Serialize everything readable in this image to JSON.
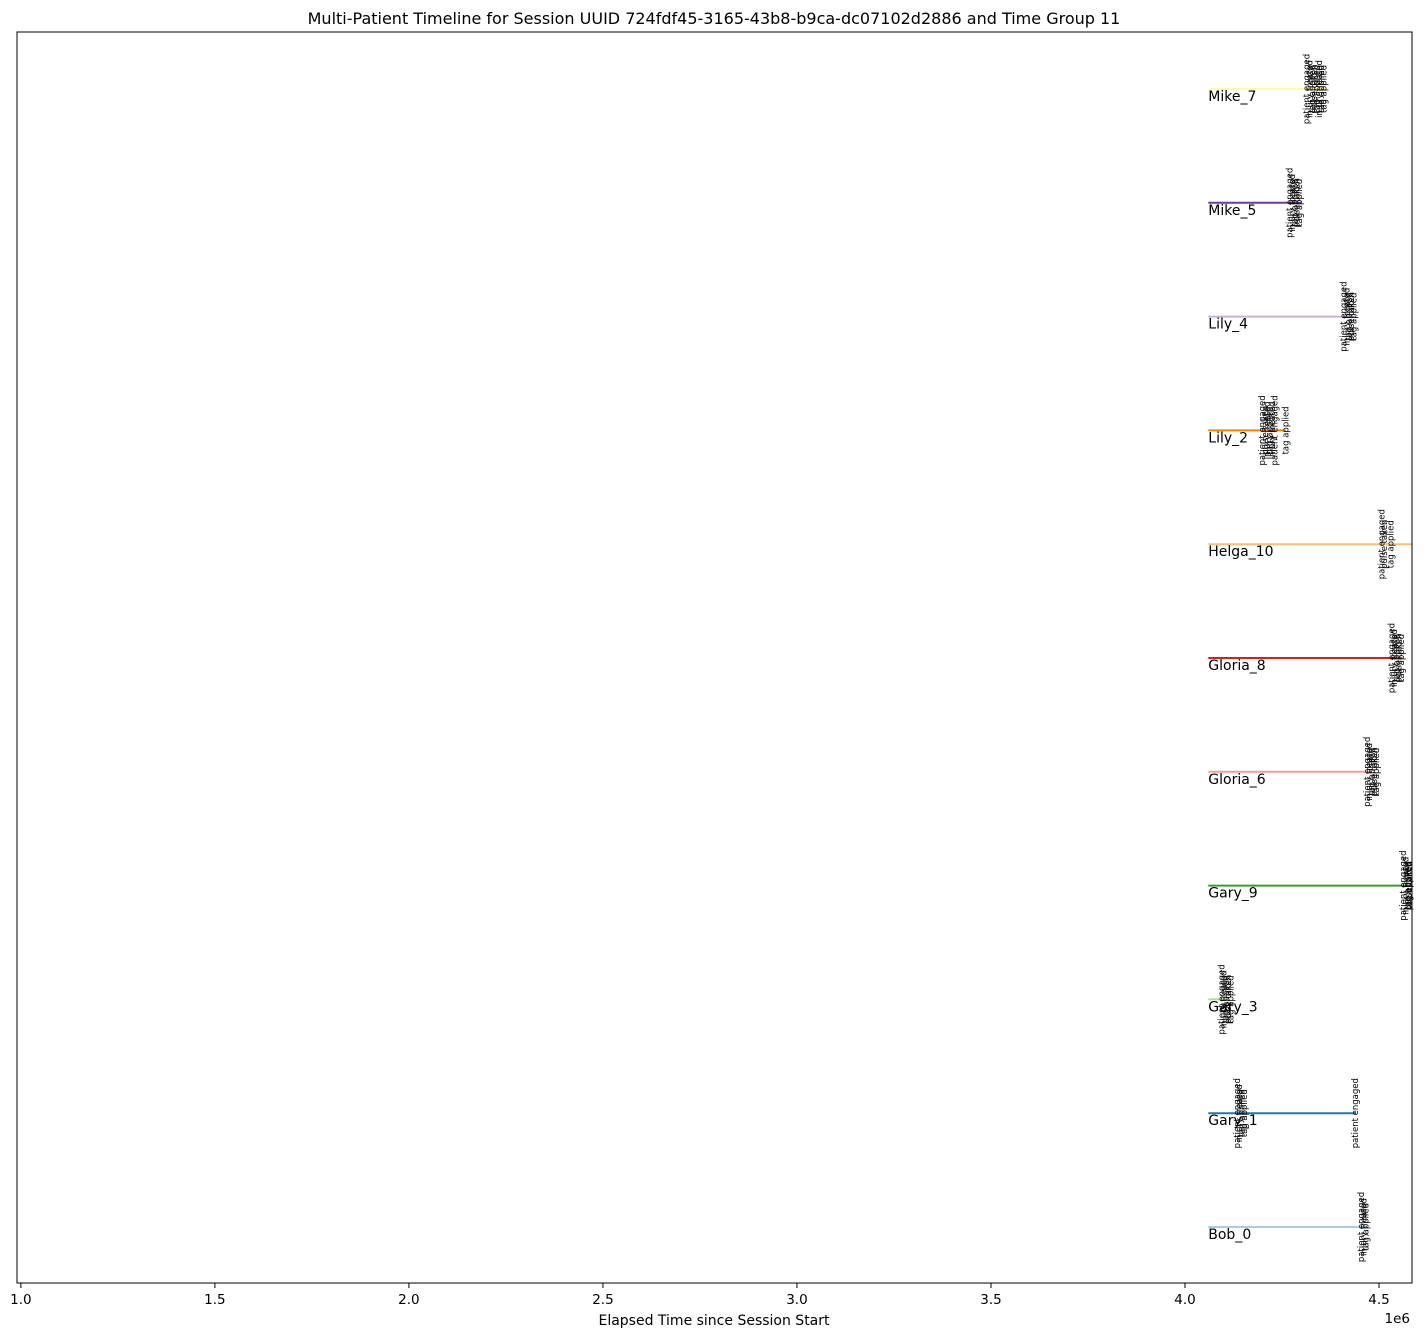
{
  "chart_data": {
    "type": "timeline",
    "title": "Multi-Patient Timeline for Session UUID 724fdf45-3165-43b8-b9ca-dc07102d2886 and Time Group 11",
    "xlabel": "Elapsed Time since Session Start",
    "ylabel": "",
    "x_offset_label": "1e6",
    "xlim": [
      0.99,
      4.585
    ],
    "x_ticks": [
      1.0,
      1.5,
      2.0,
      2.5,
      3.0,
      3.5,
      4.0,
      4.5
    ],
    "x_tick_labels": [
      "1.0",
      "1.5",
      "2.0",
      "2.5",
      "3.0",
      "3.5",
      "4.0",
      "4.5"
    ],
    "y_ticks_shown": false,
    "grid": false,
    "series": [
      {
        "name": "Mike_7",
        "color": "#ffff99",
        "start": 4.06,
        "end": 4.365,
        "events": [
          {
            "x": 4.315,
            "label": "patient engaged"
          },
          {
            "x": 4.322,
            "label": "injury treated"
          },
          {
            "x": 4.328,
            "label": "tag applied"
          },
          {
            "x": 4.334,
            "label": "pulse taken"
          },
          {
            "x": 4.34,
            "label": "tag applied"
          },
          {
            "x": 4.346,
            "label": "injury treated"
          },
          {
            "x": 4.352,
            "label": "tag applied"
          },
          {
            "x": 4.358,
            "label": "tag applied"
          }
        ]
      },
      {
        "name": "Mike_5",
        "color": "#6a3d9a",
        "start": 4.06,
        "end": 4.3,
        "events": [
          {
            "x": 4.27,
            "label": "patient engaged"
          },
          {
            "x": 4.277,
            "label": "injury treated"
          },
          {
            "x": 4.283,
            "label": "tag applied"
          },
          {
            "x": 4.289,
            "label": "pulse taken"
          },
          {
            "x": 4.295,
            "label": "tag applied"
          }
        ]
      },
      {
        "name": "Lily_4",
        "color": "#cab2d6",
        "start": 4.06,
        "end": 4.44,
        "events": [
          {
            "x": 4.41,
            "label": "patient engaged"
          },
          {
            "x": 4.417,
            "label": "injury treated"
          },
          {
            "x": 4.423,
            "label": "tag applied"
          },
          {
            "x": 4.429,
            "label": "pulse taken"
          },
          {
            "x": 4.435,
            "label": "tag applied"
          }
        ]
      },
      {
        "name": "Lily_2",
        "color": "#ff7f00",
        "start": 4.06,
        "end": 4.26,
        "events": [
          {
            "x": 4.2,
            "label": "patient engaged"
          },
          {
            "x": 4.207,
            "label": "pulse taken"
          },
          {
            "x": 4.213,
            "label": "injury treated"
          },
          {
            "x": 4.219,
            "label": "tag applied"
          },
          {
            "x": 4.226,
            "label": "injury treated"
          },
          {
            "x": 4.232,
            "label": "patient engaged"
          },
          {
            "x": 4.26,
            "label": "tag applied"
          }
        ]
      },
      {
        "name": "Helga_10",
        "color": "#fdbf6f",
        "start": 4.06,
        "end": 4.585,
        "events": [
          {
            "x": 4.508,
            "label": "patient engaged"
          },
          {
            "x": 4.514,
            "label": "pulse taken"
          },
          {
            "x": 4.531,
            "label": "tag applied"
          }
        ]
      },
      {
        "name": "Gloria_8",
        "color": "#e31a1c",
        "start": 4.06,
        "end": 4.56,
        "events": [
          {
            "x": 4.534,
            "label": "patient engaged"
          },
          {
            "x": 4.54,
            "label": "injury treated"
          },
          {
            "x": 4.546,
            "label": "tag applied"
          },
          {
            "x": 4.552,
            "label": "pulse taken"
          },
          {
            "x": 4.558,
            "label": "tag applied"
          }
        ]
      },
      {
        "name": "Gloria_6",
        "color": "#fb9a99",
        "start": 4.06,
        "end": 4.48,
        "events": [
          {
            "x": 4.47,
            "label": "patient engaged"
          },
          {
            "x": 4.476,
            "label": "injury treated"
          },
          {
            "x": 4.482,
            "label": "tag applied"
          },
          {
            "x": 4.488,
            "label": "pulse taken"
          },
          {
            "x": 4.494,
            "label": "tag applied"
          }
        ]
      },
      {
        "name": "Gary_9",
        "color": "#33a02c",
        "start": 4.06,
        "end": 4.585,
        "events": [
          {
            "x": 4.563,
            "label": "patient engaged"
          },
          {
            "x": 4.569,
            "label": "injury treated"
          },
          {
            "x": 4.575,
            "label": "tag applied"
          },
          {
            "x": 4.581,
            "label": "pulse taken"
          },
          {
            "x": 4.585,
            "label": "tag applied"
          }
        ]
      },
      {
        "name": "Gary_3",
        "color": "#b2df8a",
        "start": 4.06,
        "end": 4.11,
        "events": [
          {
            "x": 4.095,
            "label": "patient engaged"
          },
          {
            "x": 4.1,
            "label": "injury treated"
          },
          {
            "x": 4.106,
            "label": "tag applied"
          },
          {
            "x": 4.112,
            "label": "pulse taken"
          },
          {
            "x": 4.118,
            "label": "tag applied"
          }
        ]
      },
      {
        "name": "Gary_1",
        "color": "#1f78b4",
        "start": 4.06,
        "end": 4.44,
        "events": [
          {
            "x": 4.135,
            "label": "patient engaged"
          },
          {
            "x": 4.141,
            "label": "injury treated"
          },
          {
            "x": 4.147,
            "label": "tag applied"
          },
          {
            "x": 4.153,
            "label": "tag applied"
          },
          {
            "x": 4.44,
            "label": "patient engaged"
          }
        ]
      },
      {
        "name": "Bob_0",
        "color": "#a6cee3",
        "start": 4.06,
        "end": 4.47,
        "events": [
          {
            "x": 4.455,
            "label": "patient engaged"
          },
          {
            "x": 4.461,
            "label": "injury treated"
          },
          {
            "x": 4.467,
            "label": "tag applied"
          }
        ]
      }
    ]
  }
}
